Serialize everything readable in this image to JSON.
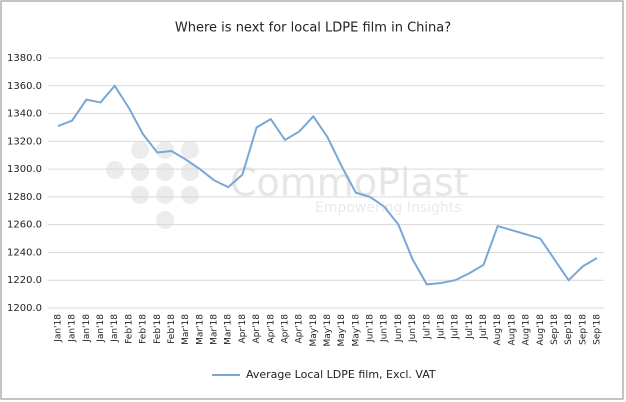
{
  "chart_data": {
    "type": "line",
    "title": "Where is next for local LDPE film in China?",
    "watermark": "CommoPlast",
    "watermark_sub": "Empowering Insights",
    "categories": [
      "Jan'18",
      "Jan'18",
      "Jan'18",
      "Jan'18",
      "Jan'18",
      "Feb'18",
      "Feb'18",
      "Feb'18",
      "Feb'18",
      "Mar'18",
      "Mar'18",
      "Mar'18",
      "Mar'18",
      "Apr'18",
      "Apr'18",
      "Apr'18",
      "Apr'18",
      "Apr'18",
      "May'18",
      "May'18",
      "May'18",
      "May'18",
      "Jun'18",
      "Jun'18",
      "Jun'18",
      "Jun'18",
      "Jul'18",
      "Jul'18",
      "Jul'18",
      "Jul'18",
      "Jul'18",
      "Aug'18",
      "Aug'18",
      "Aug'18",
      "Aug'18",
      "Sep'18",
      "Sep'18",
      "Sep'18",
      "Sep'18"
    ],
    "series": [
      {
        "name": "Average Local LDPE film, Excl. VAT",
        "color": "#79a7d6",
        "values": [
          1331,
          1335,
          1350,
          1348,
          1360,
          1344,
          1325,
          1312,
          1313,
          1307,
          1300,
          1292,
          1287,
          1296,
          1330,
          1336,
          1321,
          1327,
          1338,
          1323,
          1302,
          1283,
          1280,
          1273,
          1260,
          1235,
          1217,
          1218,
          1220,
          1225,
          1231,
          1259,
          1256,
          1253,
          1250,
          1235,
          1220,
          1230,
          1236
        ]
      }
    ],
    "ylim": [
      1200,
      1380
    ],
    "yticks": [
      {
        "value": 1200,
        "label": "1200.0"
      },
      {
        "value": 1220,
        "label": "1220.0"
      },
      {
        "value": 1240,
        "label": "1240.0"
      },
      {
        "value": 1260,
        "label": "1260.0"
      },
      {
        "value": 1280,
        "label": "1280.0"
      },
      {
        "value": 1300,
        "label": "1300.0"
      },
      {
        "value": 1320,
        "label": "1320.0"
      },
      {
        "value": 1340,
        "label": "1340.0"
      },
      {
        "value": 1360,
        "label": "1360.0"
      },
      {
        "value": 1380,
        "label": "1380.0"
      }
    ],
    "grid": true,
    "legend": "bottom"
  }
}
